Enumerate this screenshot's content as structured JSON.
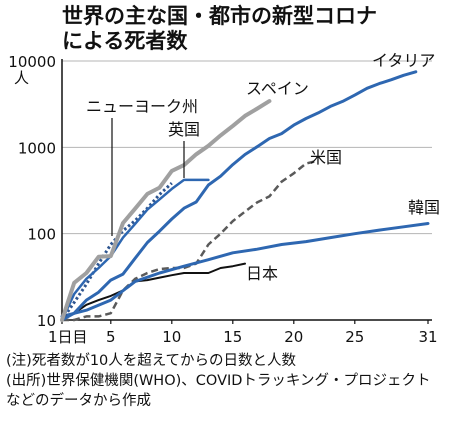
{
  "header": {
    "title_line1": "世界の主な国・都市の新型コロナ",
    "title_line2": "による死者数"
  },
  "notes": {
    "note": "(注)死者数が10人を超えてからの日数と人数",
    "source_line1": "(出所)世界保健機関(WHO)、COVIDトラッキング・プロジェクト",
    "source_line2": "などのデータから作成"
  },
  "chart_data": {
    "type": "line",
    "title": "世界の主な国・都市の新型コロナによる死者数",
    "yscale": "log",
    "ylim": [
      10,
      10000
    ],
    "xlim": [
      1,
      31
    ],
    "y_unit": "人",
    "x_ticks": [
      {
        "value": 1,
        "label": "1日目"
      },
      {
        "value": 5,
        "label": "5"
      },
      {
        "value": 10,
        "label": "10"
      },
      {
        "value": 15,
        "label": "15"
      },
      {
        "value": 20,
        "label": "20"
      },
      {
        "value": 25,
        "label": "25"
      },
      {
        "value": 31,
        "label": "31"
      }
    ],
    "y_ticks": [
      {
        "value": 10,
        "label": "10"
      },
      {
        "value": 100,
        "label": "100"
      },
      {
        "value": 1000,
        "label": "1000"
      },
      {
        "value": 10000,
        "label": "10000"
      }
    ],
    "grid": "horizontal",
    "series": [
      {
        "name": "スペイン",
        "color": "#a0a0a0",
        "style": "solid",
        "width": 4,
        "x": [
          1,
          2,
          3,
          4,
          5,
          6,
          7,
          8,
          9,
          10,
          11,
          12,
          13,
          14,
          15,
          16,
          17,
          18
        ],
        "y": [
          10,
          27,
          35,
          54,
          55,
          133,
          195,
          289,
          342,
          533,
          623,
          830,
          1043,
          1375,
          1772,
          2311,
          2808,
          3434
        ]
      },
      {
        "name": "英国",
        "color": "#2e67b1",
        "style": "solid",
        "width": 2.5,
        "x": [
          1,
          2,
          3,
          4,
          5,
          6,
          7,
          8,
          9,
          10,
          11,
          12,
          13
        ],
        "y": [
          10,
          20,
          30,
          40,
          55,
          90,
          130,
          190,
          250,
          330,
          420,
          420,
          420
        ]
      },
      {
        "name": "ニューヨーク州",
        "color": "#2e5590",
        "style": "dotted",
        "width": 3,
        "x": [
          1,
          2,
          3,
          4,
          5,
          6,
          7,
          8,
          9,
          10
        ],
        "y": [
          10,
          16,
          26,
          45,
          75,
          108,
          142,
          197,
          285,
          385
        ]
      },
      {
        "name": "イタリア",
        "color": "#2e67b1",
        "style": "solid",
        "width": 3,
        "x": [
          1,
          2,
          3,
          4,
          5,
          6,
          7,
          8,
          9,
          10,
          11,
          12,
          13,
          14,
          15,
          16,
          17,
          18,
          19,
          20,
          21,
          22,
          23,
          24,
          25,
          26,
          27,
          28,
          29,
          30
        ],
        "y": [
          10,
          12,
          17,
          21,
          29,
          34,
          52,
          79,
          107,
          148,
          197,
          233,
          366,
          463,
          631,
          827,
          1016,
          1266,
          1441,
          1809,
          2158,
          2503,
          2978,
          3405,
          4032,
          4825,
          5476,
          6077,
          6820,
          7503
        ]
      },
      {
        "name": "米国",
        "color": "#5a5a5a",
        "style": "dashed",
        "width": 2.5,
        "x": [
          1,
          2,
          3,
          4,
          5,
          6,
          7,
          8,
          9,
          10,
          11,
          12,
          13,
          14,
          15,
          16,
          17,
          18,
          19,
          20,
          21,
          22
        ],
        "y": [
          10,
          10,
          11,
          11,
          12,
          22,
          30,
          35,
          39,
          40,
          40,
          45,
          75,
          100,
          140,
          180,
          230,
          270,
          400,
          500,
          650,
          700
        ]
      },
      {
        "name": "韓国",
        "color": "#2e67b1",
        "style": "solid",
        "width": 3,
        "x": [
          1,
          3,
          5,
          7,
          9,
          11,
          13,
          15,
          17,
          19,
          21,
          23,
          25,
          27,
          29,
          31
        ],
        "y": [
          11,
          13,
          17,
          28,
          35,
          42,
          50,
          60,
          66,
          75,
          81,
          90,
          100,
          110,
          120,
          131
        ]
      },
      {
        "name": "日本",
        "color": "#111111",
        "style": "solid",
        "width": 2,
        "x": [
          1,
          2,
          3,
          4,
          5,
          6,
          7,
          8,
          9,
          10,
          11,
          12,
          13,
          14,
          15,
          16
        ],
        "y": [
          10,
          12,
          15,
          17,
          19,
          22,
          28,
          29,
          31,
          33,
          35,
          35,
          35,
          40,
          42,
          45
        ]
      }
    ]
  }
}
